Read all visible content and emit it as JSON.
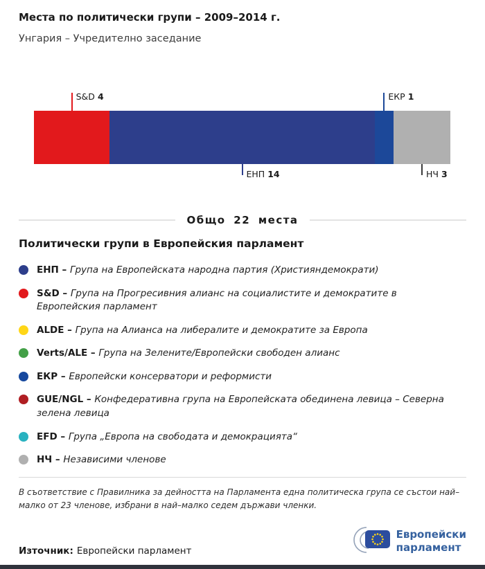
{
  "header": {
    "title": "Места по политически групи – 2009–2014 г.",
    "subtitle": "Унгария – Учредително заседание"
  },
  "chart_data": {
    "type": "bar",
    "title": "Места по политически групи – 2009–2014 г.",
    "subtitle": "Унгария – Учредително заседание",
    "total_seats": 22,
    "total_label": "Общо 22 места",
    "segments": [
      {
        "name": "S&D",
        "seats": 4,
        "color": "#e2191c",
        "line_color": "#e2191c",
        "label_position": "top"
      },
      {
        "name": "ЕНП",
        "seats": 14,
        "color": "#2d3e8b",
        "line_color": "#2d3e8b",
        "label_position": "bottom"
      },
      {
        "name": "ЕКР",
        "seats": 1,
        "color": "#1c4899",
        "line_color": "#1c4899",
        "label_position": "top"
      },
      {
        "name": "НЧ",
        "seats": 3,
        "color": "#b0b0b0",
        "line_color": "#3a3a3a",
        "label_position": "bottom"
      }
    ]
  },
  "legend": {
    "title": "Политически групи в Европейския парламент",
    "items": [
      {
        "name": "ЕНП –",
        "desc": "Група на Европейската народна партия (Християндемократи)",
        "color": "#2d3e8b"
      },
      {
        "name": "S&D –",
        "desc": "Група на Прогресивния алианс на социалистите и демократите в Европейския парламент",
        "color": "#e2191c"
      },
      {
        "name": "ALDE –",
        "desc": "Група на Алианса на либералите и демократите за Европа",
        "color": "#ffd617"
      },
      {
        "name": "Verts/ALE –",
        "desc": "Група на Зелените/Европейски свободен алианс",
        "color": "#43a047"
      },
      {
        "name": "ЕКР –",
        "desc": "Европейски консерватори и реформисти",
        "color": "#16489e"
      },
      {
        "name": "GUE/NGL –",
        "desc": "Конфедеративна група на Европейската обединена левица – Северна зелена левица",
        "color": "#b01e23"
      },
      {
        "name": "EFD –",
        "desc": "Група „Европа на свободата и демокрацията“",
        "color": "#29b2c0"
      },
      {
        "name": "НЧ –",
        "desc": "Независими членове",
        "color": "#b0b0b0"
      }
    ]
  },
  "footer": {
    "note": "В съответствие с Правилника за дейността на Парламента една политическа група се състои най–малко от 23 членове, избрани в най–малко седем държави членки.",
    "source_label": "Източник:",
    "source_value": "Европейски парламент",
    "logo": {
      "line1": "Европейски",
      "line2": "парламент",
      "color": "#35619f"
    }
  }
}
